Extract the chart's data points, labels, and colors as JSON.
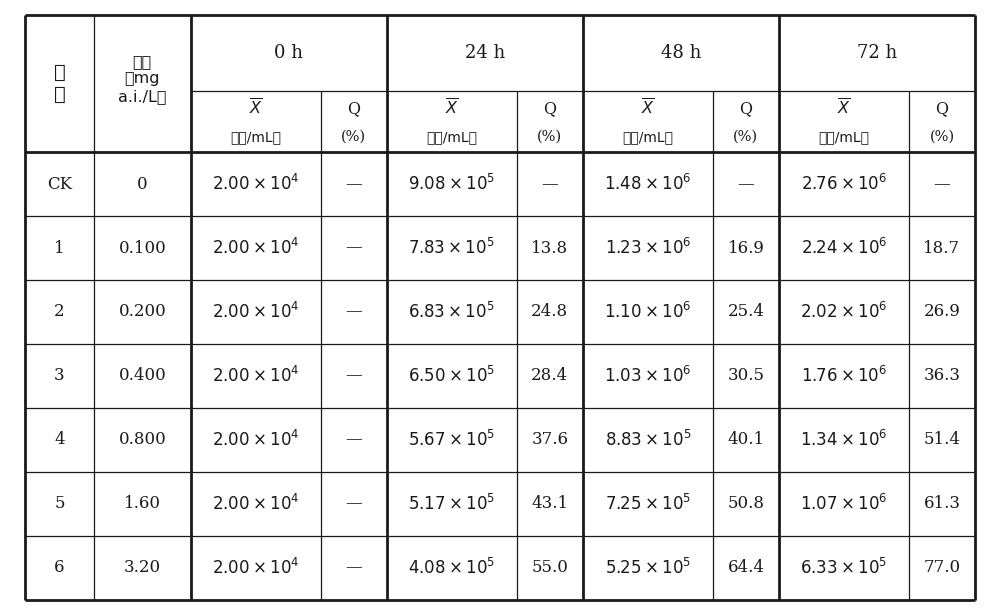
{
  "rows": [
    {
      "col0": "CK",
      "col1": "0",
      "col2": "2.00×10⁴",
      "col3": "—",
      "col4": "9.08×10⁵",
      "col5": "—",
      "col6": "1.48×10⁶",
      "col7": "—",
      "col8": "2.76×10⁶",
      "col9": "—"
    },
    {
      "col0": "1",
      "col1": "0.100",
      "col2": "2.00×10⁴",
      "col3": "—",
      "col4": "7.83×10⁵",
      "col5": "13.8",
      "col6": "1.23×10⁶",
      "col7": "16.9",
      "col8": "2.24×10⁶",
      "col9": "18.7"
    },
    {
      "col0": "2",
      "col1": "0.200",
      "col2": "2.00×10⁴",
      "col3": "—",
      "col4": "6.83×10⁵",
      "col5": "24.8",
      "col6": "1.10×10⁶",
      "col7": "25.4",
      "col8": "2.02×10⁶",
      "col9": "26.9"
    },
    {
      "col0": "3",
      "col1": "0.400",
      "col2": "2.00×10⁴",
      "col3": "—",
      "col4": "6.50×10⁵",
      "col5": "28.4",
      "col6": "1.03×10⁶",
      "col7": "30.5",
      "col8": "1.76×10⁶",
      "col9": "36.3"
    },
    {
      "col0": "4",
      "col1": "0.800",
      "col2": "2.00×10⁴",
      "col3": "—",
      "col4": "5.67×10⁵",
      "col5": "37.6",
      "col6": "8.83×10⁵",
      "col7": "40.1",
      "col8": "1.34×10⁶",
      "col9": "51.4"
    },
    {
      "col0": "5",
      "col1": "1.60",
      "col2": "2.00×10⁴",
      "col3": "—",
      "col4": "5.17×10⁵",
      "col5": "43.1",
      "col6": "7.25×10⁵",
      "col7": "50.8",
      "col8": "1.07×10⁶",
      "col9": "61.3"
    },
    {
      "col0": "6",
      "col1": "3.20",
      "col2": "2.00×10⁴",
      "col3": "—",
      "col4": "4.08×10⁵",
      "col5": "55.0",
      "col6": "5.25×10⁵",
      "col7": "64.4",
      "col8": "6.33×10⁵",
      "col9": "77.0"
    }
  ],
  "bg_color": "#ffffff",
  "line_color": "#1a1a1a",
  "lw_thick": 2.0,
  "lw_thin": 0.9,
  "fs_header": 13,
  "fs_subheader": 11.5,
  "fs_data": 12,
  "fs_chinese_header": 14,
  "fs_chinese_sub": 11,
  "col_widths_rel": [
    0.68,
    0.95,
    1.28,
    0.65,
    1.28,
    0.65,
    1.28,
    0.65,
    1.28,
    0.65
  ],
  "row_heights_rel": [
    1.25,
    1.0,
    1.05,
    1.05,
    1.05,
    1.05,
    1.05,
    1.05,
    1.05
  ]
}
